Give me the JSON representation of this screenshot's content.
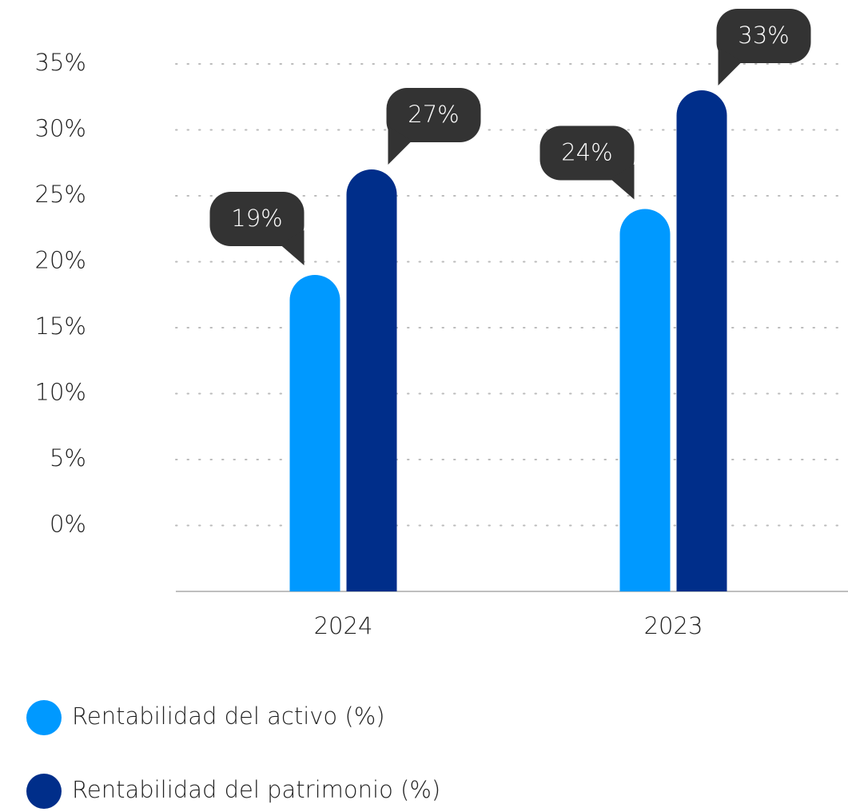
{
  "chart_data": {
    "type": "bar",
    "categories": [
      "2024",
      "2023"
    ],
    "series": [
      {
        "name": "Rentabilidad del activo (%)",
        "color": "#0099ff",
        "values": [
          19,
          24
        ],
        "value_labels": [
          "19%",
          "24%"
        ]
      },
      {
        "name": "Rentabilidad del patrimonio (%)",
        "color": "#002e8a",
        "values": [
          27,
          33
        ],
        "value_labels": [
          "27%",
          "33%"
        ]
      }
    ],
    "ylim": [
      -5,
      35
    ],
    "yticks": [
      {
        "value": 0,
        "label": "0%"
      },
      {
        "value": 5,
        "label": "5%"
      },
      {
        "value": 10,
        "label": "10%"
      },
      {
        "value": 15,
        "label": "15%"
      },
      {
        "value": 20,
        "label": "20%"
      },
      {
        "value": 25,
        "label": "25%"
      },
      {
        "value": 30,
        "label": "30%"
      },
      {
        "value": 35,
        "label": "35%"
      }
    ],
    "grid": true,
    "legend": "bottom-left"
  }
}
